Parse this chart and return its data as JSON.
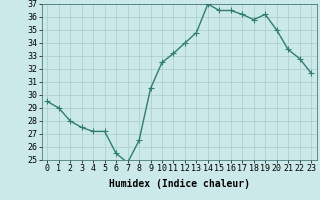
{
  "x": [
    0,
    1,
    2,
    3,
    4,
    5,
    6,
    7,
    8,
    9,
    10,
    11,
    12,
    13,
    14,
    15,
    16,
    17,
    18,
    19,
    20,
    21,
    22,
    23
  ],
  "y": [
    29.5,
    29.0,
    28.0,
    27.5,
    27.2,
    27.2,
    25.5,
    24.8,
    26.5,
    30.5,
    32.5,
    33.2,
    34.0,
    34.8,
    37.0,
    36.5,
    36.5,
    36.2,
    35.8,
    36.2,
    35.0,
    33.5,
    32.8,
    31.7
  ],
  "line_color": "#2e7d6e",
  "marker": "+",
  "marker_size": 4,
  "bg_color": "#cce9e9",
  "grid_color": "#aacccc",
  "xlabel": "Humidex (Indice chaleur)",
  "ylim": [
    25,
    37
  ],
  "xlim_min": -0.5,
  "xlim_max": 23.5,
  "yticks": [
    25,
    26,
    27,
    28,
    29,
    30,
    31,
    32,
    33,
    34,
    35,
    36,
    37
  ],
  "xticks": [
    0,
    1,
    2,
    3,
    4,
    5,
    6,
    7,
    8,
    9,
    10,
    11,
    12,
    13,
    14,
    15,
    16,
    17,
    18,
    19,
    20,
    21,
    22,
    23
  ],
  "xtick_labels": [
    "0",
    "1",
    "2",
    "3",
    "4",
    "5",
    "6",
    "7",
    "8",
    "9",
    "10",
    "11",
    "12",
    "13",
    "14",
    "15",
    "16",
    "17",
    "18",
    "19",
    "20",
    "21",
    "22",
    "23"
  ],
  "xlabel_fontsize": 7,
  "tick_fontsize": 6,
  "line_width": 1.0,
  "marker_edge_width": 0.8
}
